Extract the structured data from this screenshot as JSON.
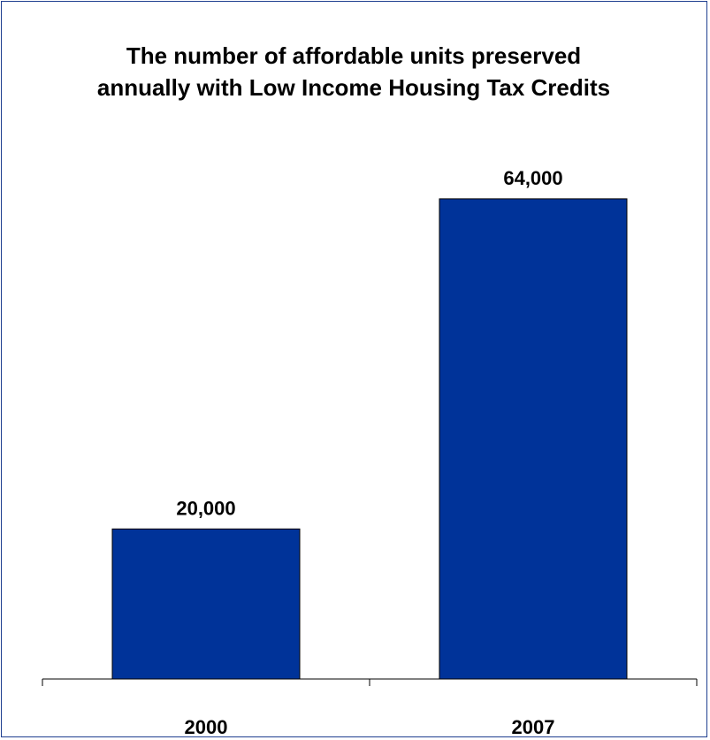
{
  "chart_data": {
    "type": "bar",
    "title": "The number of affordable units preserved annually with Low Income Housing Tax Credits",
    "categories": [
      "2000",
      "2007"
    ],
    "values": [
      20000,
      64000
    ],
    "value_labels": [
      "20,000",
      "64,000"
    ],
    "xlabel": "",
    "ylabel": "",
    "ylim": [
      0,
      72000
    ],
    "grid": false,
    "legend": "none",
    "bar_color": "#003399",
    "bar_edge_color": "#000000"
  }
}
